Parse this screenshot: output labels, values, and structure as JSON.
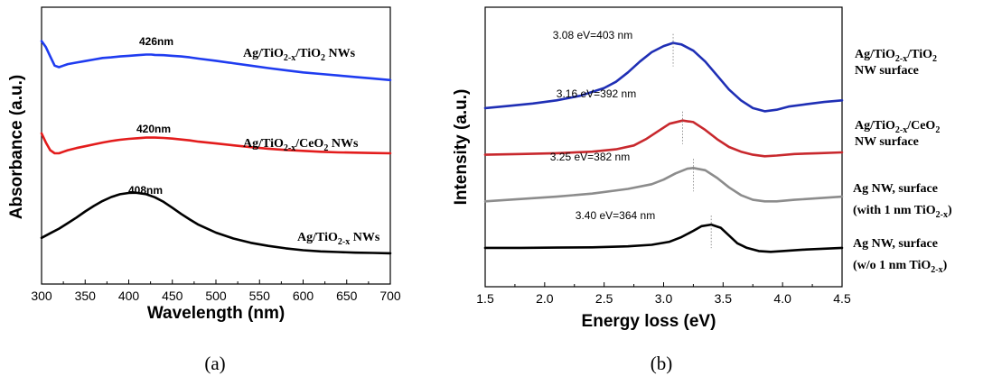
{
  "chart_data": [
    {
      "type": "line",
      "panel_label": "(a)",
      "xlabel": "Wavelength (nm)",
      "ylabel": "Absorbance (a.u.)",
      "xlim": [
        300,
        700
      ],
      "xticks": [
        "300",
        "350",
        "400",
        "450",
        "500",
        "550",
        "600",
        "650",
        "700"
      ],
      "yticks_shown": false,
      "series": [
        {
          "name": "Ag/TiO2-x/TiO2 NWs",
          "color": "#1f3cf0",
          "peak_label": "426nm",
          "x": [
            300,
            305,
            310,
            315,
            320,
            325,
            330,
            340,
            350,
            360,
            370,
            380,
            390,
            400,
            410,
            420,
            426,
            430,
            440,
            450,
            460,
            470,
            480,
            500,
            520,
            540,
            560,
            580,
            600,
            620,
            640,
            660,
            680,
            700
          ],
          "y": [
            0.91,
            0.89,
            0.86,
            0.83,
            0.825,
            0.83,
            0.835,
            0.84,
            0.845,
            0.85,
            0.855,
            0.857,
            0.86,
            0.862,
            0.864,
            0.866,
            0.866,
            0.865,
            0.864,
            0.862,
            0.86,
            0.857,
            0.853,
            0.846,
            0.838,
            0.83,
            0.822,
            0.815,
            0.808,
            0.803,
            0.798,
            0.793,
            0.788,
            0.783
          ]
        },
        {
          "name": "Ag/TiO2-x/CeO2 NWs",
          "color": "#e31c1c",
          "peak_label": "420nm",
          "x": [
            300,
            305,
            310,
            315,
            320,
            325,
            330,
            340,
            350,
            360,
            370,
            380,
            390,
            400,
            410,
            420,
            430,
            440,
            450,
            460,
            470,
            480,
            500,
            520,
            540,
            560,
            580,
            600,
            620,
            640,
            660,
            680,
            700
          ],
          "y": [
            0.61,
            0.58,
            0.555,
            0.545,
            0.545,
            0.55,
            0.555,
            0.562,
            0.568,
            0.574,
            0.58,
            0.585,
            0.589,
            0.592,
            0.594,
            0.596,
            0.596,
            0.595,
            0.593,
            0.59,
            0.587,
            0.583,
            0.577,
            0.571,
            0.565,
            0.56,
            0.556,
            0.553,
            0.55,
            0.548,
            0.547,
            0.546,
            0.545
          ]
        },
        {
          "name": "Ag/TiO2-x NWs",
          "color": "#000000",
          "peak_label": "408nm",
          "x": [
            300,
            310,
            320,
            330,
            340,
            350,
            360,
            370,
            380,
            390,
            400,
            408,
            420,
            430,
            440,
            450,
            460,
            470,
            480,
            500,
            520,
            540,
            560,
            580,
            600,
            620,
            640,
            660,
            680,
            700
          ],
          "y": [
            0.27,
            0.285,
            0.3,
            0.318,
            0.336,
            0.356,
            0.374,
            0.39,
            0.403,
            0.412,
            0.416,
            0.417,
            0.412,
            0.402,
            0.387,
            0.368,
            0.348,
            0.33,
            0.313,
            0.287,
            0.268,
            0.254,
            0.244,
            0.236,
            0.23,
            0.226,
            0.224,
            0.222,
            0.221,
            0.22
          ]
        }
      ]
    },
    {
      "type": "line",
      "panel_label": "(b)",
      "xlabel": "Energy loss (eV)",
      "ylabel": "Intensity (a.u.)",
      "xlim": [
        1.5,
        4.5
      ],
      "xticks": [
        "1.5",
        "2.0",
        "2.5",
        "3.0",
        "3.5",
        "4.0",
        "4.5"
      ],
      "yticks_shown": false,
      "series": [
        {
          "name": "Ag/TiO2-x/TiO2 NW surface",
          "color": "#1f2fb5",
          "peak_label": "3.08 eV=403 nm",
          "peak_x": 3.08,
          "x": [
            1.5,
            1.7,
            1.9,
            2.1,
            2.3,
            2.5,
            2.6,
            2.7,
            2.8,
            2.9,
            3.0,
            3.08,
            3.15,
            3.25,
            3.35,
            3.45,
            3.55,
            3.65,
            3.75,
            3.85,
            3.95,
            4.05,
            4.2,
            4.35,
            4.5
          ],
          "y": [
            0.8,
            0.815,
            0.83,
            0.85,
            0.88,
            0.93,
            0.97,
            1.03,
            1.1,
            1.16,
            1.2,
            1.22,
            1.21,
            1.17,
            1.1,
            1.01,
            0.92,
            0.85,
            0.8,
            0.78,
            0.79,
            0.81,
            0.825,
            0.84,
            0.85
          ]
        },
        {
          "name": "Ag/TiO2-x/CeO2 NW surface",
          "color": "#c8282d",
          "peak_label": "3.16 eV=392 nm",
          "peak_x": 3.16,
          "x": [
            1.5,
            1.8,
            2.1,
            2.4,
            2.6,
            2.75,
            2.85,
            2.95,
            3.05,
            3.16,
            3.25,
            3.35,
            3.45,
            3.55,
            3.65,
            3.75,
            3.85,
            3.95,
            4.1,
            4.3,
            4.5
          ],
          "y": [
            0.5,
            0.505,
            0.51,
            0.52,
            0.535,
            0.56,
            0.6,
            0.65,
            0.7,
            0.72,
            0.71,
            0.66,
            0.6,
            0.55,
            0.52,
            0.5,
            0.49,
            0.495,
            0.505,
            0.51,
            0.515
          ]
        },
        {
          "name": "Ag NW, surface (with 1 nm TiO2-x)",
          "color": "#8c8c8c",
          "peak_label": "3.25 eV=382 nm",
          "peak_x": 3.25,
          "x": [
            1.5,
            1.8,
            2.1,
            2.4,
            2.7,
            2.9,
            3.0,
            3.1,
            3.2,
            3.25,
            3.35,
            3.45,
            3.55,
            3.65,
            3.75,
            3.85,
            3.95,
            4.1,
            4.3,
            4.5
          ],
          "y": [
            0.2,
            0.215,
            0.23,
            0.25,
            0.28,
            0.31,
            0.34,
            0.38,
            0.41,
            0.415,
            0.4,
            0.35,
            0.29,
            0.24,
            0.21,
            0.2,
            0.2,
            0.21,
            0.22,
            0.23
          ]
        },
        {
          "name": "Ag NW, surface (w/o 1 nm TiO2-x)",
          "color": "#000000",
          "peak_label": "3.40 eV=364 nm",
          "peak_x": 3.4,
          "x": [
            1.5,
            1.8,
            2.1,
            2.4,
            2.7,
            2.9,
            3.05,
            3.15,
            3.25,
            3.32,
            3.4,
            3.48,
            3.55,
            3.62,
            3.7,
            3.8,
            3.9,
            4.0,
            4.2,
            4.35,
            4.5
          ],
          "y": [
            -0.1,
            -0.1,
            -0.098,
            -0.096,
            -0.09,
            -0.08,
            -0.06,
            -0.03,
            0.01,
            0.04,
            0.05,
            0.03,
            -0.02,
            -0.07,
            -0.1,
            -0.12,
            -0.125,
            -0.12,
            -0.11,
            -0.105,
            -0.1
          ]
        }
      ]
    }
  ]
}
